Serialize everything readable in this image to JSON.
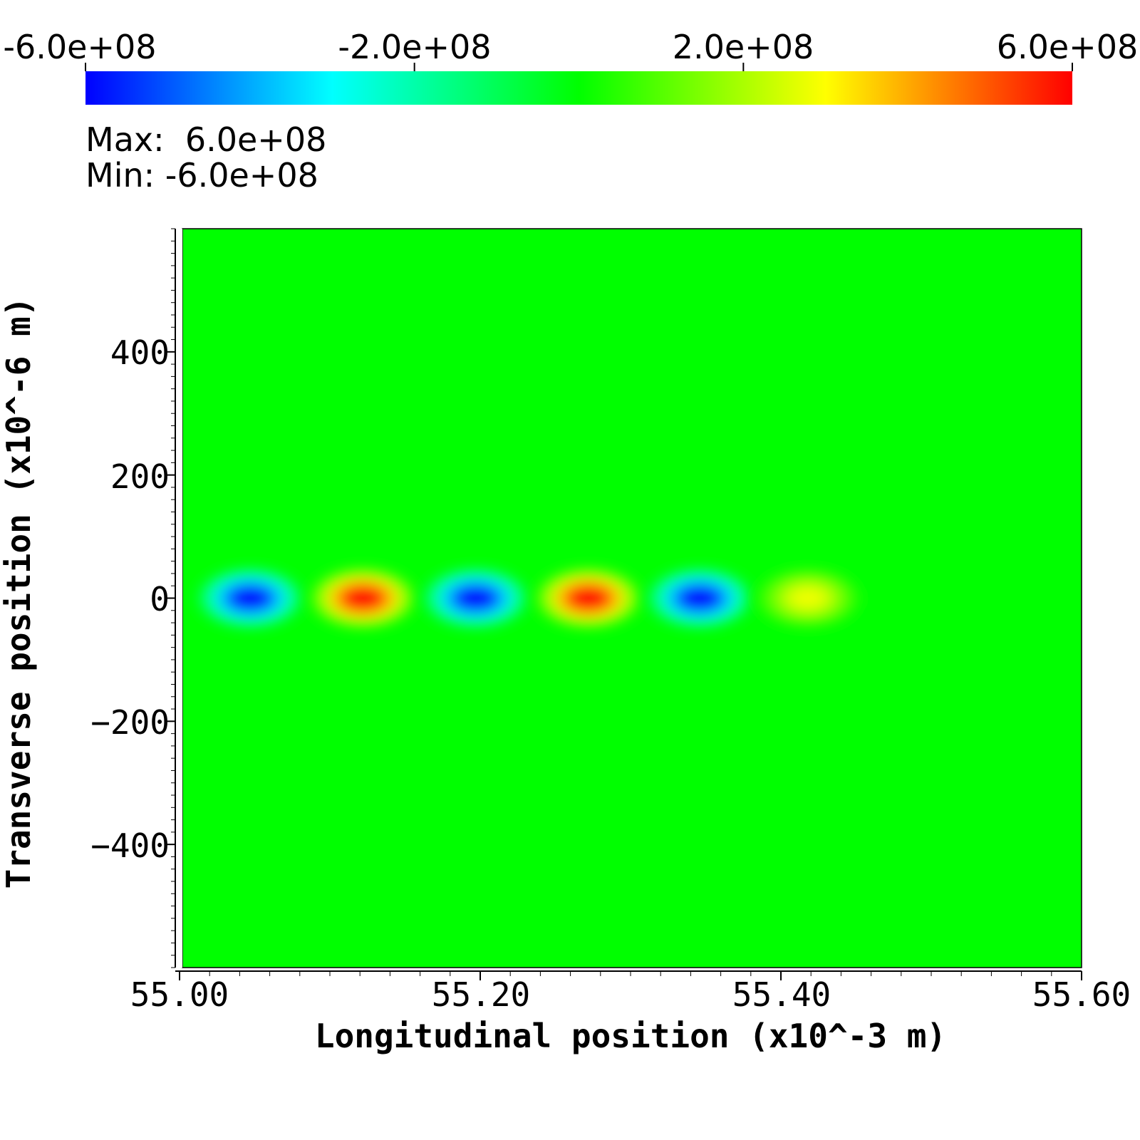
{
  "chart_data": {
    "type": "heatmap",
    "xlabel": "Longitudinal position (x10^-3 m)",
    "ylabel": "Transverse position (x10^-6 m)",
    "xlim": [
      55.0,
      55.6
    ],
    "ylim": [
      -600,
      600
    ],
    "x_ticks": [
      "55.00",
      "55.20",
      "55.40",
      "55.60"
    ],
    "x_tick_values": [
      55.0,
      55.2,
      55.4,
      55.6
    ],
    "y_ticks": [
      "400",
      "200",
      "0",
      "−200",
      "−400"
    ],
    "y_tick_values": [
      400,
      200,
      0,
      -200,
      -400
    ],
    "colorbar": {
      "range": [
        -600000000,
        600000000
      ],
      "tick_labels": [
        "-6.0e+08",
        "-2.0e+08",
        "2.0e+08",
        "6.0e+08"
      ],
      "tick_values": [
        -600000000,
        -200000000,
        200000000,
        600000000
      ],
      "colormap": [
        "#0000ff",
        "#00ffff",
        "#00ff00",
        "#ffff00",
        "#ff0000"
      ],
      "max_text": "Max:  6.0e+08",
      "min_text": "Min: -6.0e+08"
    },
    "background_value": 0,
    "features": [
      {
        "x": 55.047,
        "y": 0,
        "value": -600000000
      },
      {
        "x": 55.122,
        "y": 0,
        "value": 600000000
      },
      {
        "x": 55.197,
        "y": 0,
        "value": -600000000
      },
      {
        "x": 55.272,
        "y": 0,
        "value": 600000000
      },
      {
        "x": 55.346,
        "y": 0,
        "value": -600000000
      },
      {
        "x": 55.418,
        "y": 0,
        "value": 280000000
      }
    ],
    "feature_half_width_x": 0.025,
    "feature_half_width_y": 35
  }
}
